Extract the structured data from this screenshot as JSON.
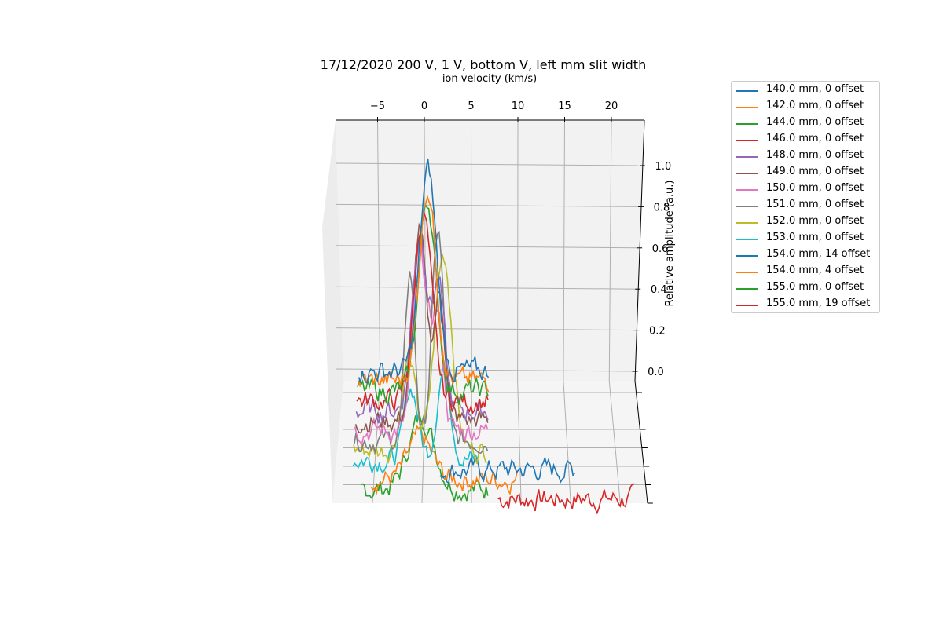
{
  "chart_data": {
    "type": "line",
    "projection": "3d",
    "title": "17/12/2020 200 V, 1 V, bottom V, left mm slit width",
    "xlabel": "ion velocity (km/s)",
    "zlabel": "Relative amplitude (a.u.)",
    "xlim": [
      -10,
      23
    ],
    "zlim": [
      -0.1,
      1.15
    ],
    "x_ticks": [
      "−5",
      "0",
      "5",
      "10",
      "15",
      "20"
    ],
    "z_ticks": [
      "0.0",
      "0.2",
      "0.4",
      "0.6",
      "0.8",
      "1.0"
    ],
    "grid": true,
    "legend_position": "right",
    "series": [
      {
        "name": "140.0 mm, 0 offset",
        "color": "#1f77b4",
        "depth": 0,
        "x_range": [
          -7,
          7
        ],
        "peaks": [
          {
            "x": 0.4,
            "h": 0.98,
            "w": 0.9
          }
        ],
        "base": 0.0
      },
      {
        "name": "142.0 mm, 0 offset",
        "color": "#ff7f0e",
        "depth": 1,
        "x_range": [
          -7,
          7
        ],
        "peaks": [
          {
            "x": 0.4,
            "h": 0.94,
            "w": 0.9
          }
        ],
        "base": 0.0
      },
      {
        "name": "144.0 mm, 0 offset",
        "color": "#2ca02c",
        "depth": 2,
        "x_range": [
          -7,
          7
        ],
        "peaks": [
          {
            "x": 0.4,
            "h": 0.93,
            "w": 0.9
          }
        ],
        "base": 0.0
      },
      {
        "name": "146.0 mm, 0 offset",
        "color": "#d62728",
        "depth": 3,
        "x_range": [
          -7,
          7
        ],
        "peaks": [
          {
            "x": 0.0,
            "h": 0.92,
            "w": 0.9
          }
        ],
        "base": 0.0
      },
      {
        "name": "148.0 mm, 0 offset",
        "color": "#9467bd",
        "depth": 4,
        "x_range": [
          -7,
          7
        ],
        "peaks": [
          {
            "x": -0.3,
            "h": 0.87,
            "w": 0.8
          },
          {
            "x": 1.7,
            "h": 0.6,
            "w": 0.6
          }
        ],
        "base": 0.0
      },
      {
        "name": "149.0 mm, 0 offset",
        "color": "#8c564b",
        "depth": 5,
        "x_range": [
          -7,
          7
        ],
        "peaks": [
          {
            "x": -0.3,
            "h": 0.92,
            "w": 0.7
          },
          {
            "x": 1.8,
            "h": 0.6,
            "w": 0.6
          }
        ],
        "base": 0.0
      },
      {
        "name": "150.0 mm, 0 offset",
        "color": "#e377c2",
        "depth": 6,
        "x_range": [
          -7,
          7
        ],
        "peaks": [
          {
            "x": -0.2,
            "h": 0.88,
            "w": 0.7
          },
          {
            "x": 1.6,
            "h": 0.55,
            "w": 0.6
          }
        ],
        "base": 0.0
      },
      {
        "name": "151.0 mm, 0 offset",
        "color": "#7f7f7f",
        "depth": 7,
        "x_range": [
          -7,
          7
        ],
        "peaks": [
          {
            "x": -1.2,
            "h": 0.82,
            "w": 0.5
          },
          {
            "x": 1.7,
            "h": 1.02,
            "w": 0.6
          }
        ],
        "base": 0.0
      },
      {
        "name": "152.0 mm, 0 offset",
        "color": "#bcbd22",
        "depth": 8,
        "x_range": [
          -7,
          7
        ],
        "peaks": [
          {
            "x": -1.3,
            "h": 0.45,
            "w": 0.7
          },
          {
            "x": 2.3,
            "h": 0.95,
            "w": 0.9
          }
        ],
        "base": 0.0
      },
      {
        "name": "153.0 mm, 0 offset",
        "color": "#17becf",
        "depth": 9,
        "x_range": [
          -7,
          6
        ],
        "peaks": [
          {
            "x": -1.0,
            "h": 0.35,
            "w": 0.7
          },
          {
            "x": 2.4,
            "h": 0.45,
            "w": 0.7
          }
        ],
        "base": 0.0
      },
      {
        "name": "154.0 mm, 14 offset",
        "color": "#1f77b4",
        "depth": 10,
        "x_range": [
          2,
          16
        ],
        "peaks": [],
        "base": 0.0
      },
      {
        "name": "154.0 mm, 4 offset",
        "color": "#ff7f0e",
        "depth": 11,
        "x_range": [
          -5,
          10
        ],
        "peaks": [
          {
            "x": 0.0,
            "h": 0.2,
            "w": 1.2
          }
        ],
        "base": 0.0
      },
      {
        "name": "155.0 mm, 0 offset",
        "color": "#2ca02c",
        "depth": 12,
        "x_range": [
          -6,
          7
        ],
        "peaks": [
          {
            "x": 0.2,
            "h": 0.35,
            "w": 1.3
          }
        ],
        "base": 0.0
      },
      {
        "name": "155.0 mm, 19 offset",
        "color": "#d62728",
        "depth": 13,
        "x_range": [
          8,
          22
        ],
        "peaks": [],
        "base": 0.0
      }
    ]
  }
}
